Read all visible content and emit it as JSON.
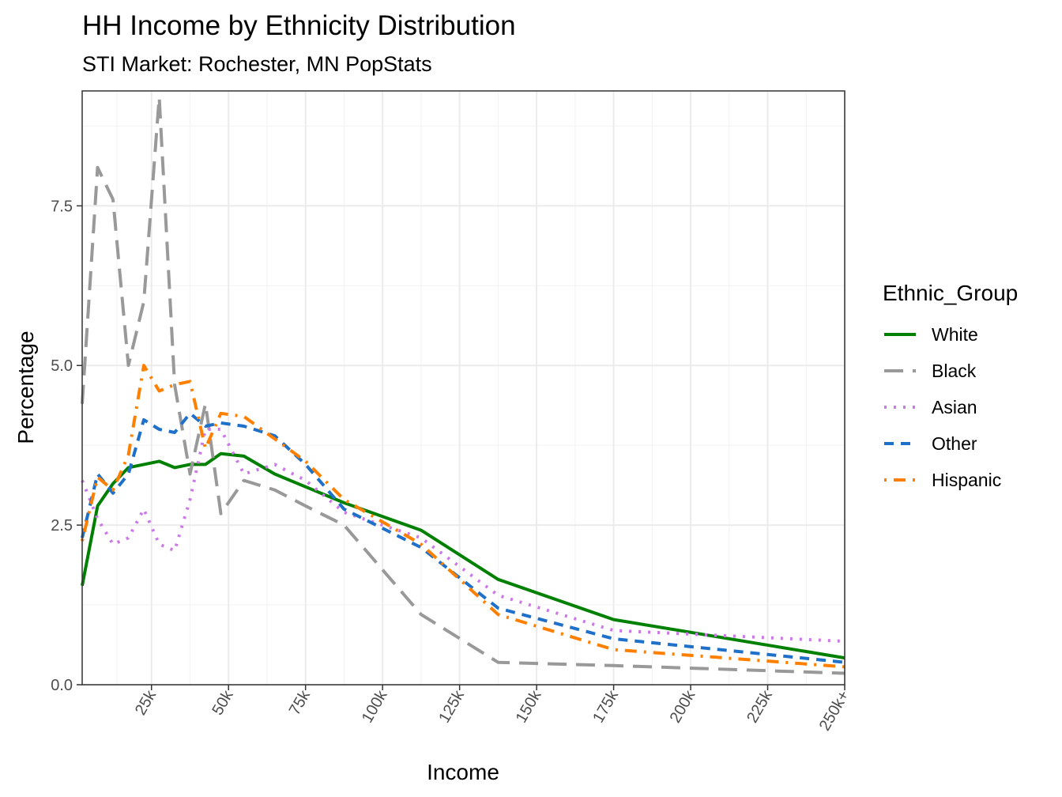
{
  "chart_data": {
    "type": "line",
    "title": "HH Income by Ethnicity Distribution",
    "subtitle": "STI Market: Rochester, MN PopStats",
    "xlabel": "Income",
    "ylabel": "Percentage",
    "xlim": [
      2.5,
      250
    ],
    "ylim": [
      0,
      9.3
    ],
    "x_ticks": [
      {
        "value": 25,
        "label": "25k"
      },
      {
        "value": 50,
        "label": "50k"
      },
      {
        "value": 75,
        "label": "75k"
      },
      {
        "value": 100,
        "label": "100k"
      },
      {
        "value": 125,
        "label": "125k"
      },
      {
        "value": 150,
        "label": "150k"
      },
      {
        "value": 175,
        "label": "175k"
      },
      {
        "value": 200,
        "label": "200k"
      },
      {
        "value": 225,
        "label": "225k"
      },
      {
        "value": 250,
        "label": "250k+"
      }
    ],
    "y_ticks": [
      {
        "value": 0,
        "label": "0.0"
      },
      {
        "value": 2.5,
        "label": "2.5"
      },
      {
        "value": 5,
        "label": "5.0"
      },
      {
        "value": 7.5,
        "label": "7.5"
      }
    ],
    "grid": true,
    "legend_title": "Ethnic_Group",
    "legend_position": "right",
    "x": [
      2.5,
      7.5,
      12.5,
      17.5,
      22.5,
      27.5,
      32.5,
      37.5,
      42.5,
      47.5,
      55,
      65,
      75,
      87.5,
      112.5,
      137.5,
      175,
      250
    ],
    "series": [
      {
        "name": "White",
        "color": "#008000",
        "dash": "solid",
        "values": [
          1.55,
          2.8,
          3.15,
          3.4,
          3.45,
          3.5,
          3.4,
          3.45,
          3.45,
          3.62,
          3.58,
          3.3,
          3.1,
          2.85,
          2.42,
          1.65,
          1.02,
          0.42
        ]
      },
      {
        "name": "Black",
        "color": "#999999",
        "dash": "longdash",
        "values": [
          4.4,
          8.1,
          7.6,
          5.0,
          6.0,
          9.2,
          4.7,
          3.3,
          4.4,
          2.68,
          3.2,
          3.05,
          2.8,
          2.5,
          1.1,
          0.35,
          0.3,
          0.18
        ]
      },
      {
        "name": "Asian",
        "color": "#CC79E8",
        "dash": "dotted",
        "values": [
          3.2,
          2.6,
          2.2,
          2.3,
          2.75,
          2.2,
          2.1,
          2.9,
          4.0,
          4.0,
          3.3,
          3.45,
          3.2,
          2.7,
          2.3,
          1.4,
          0.85,
          0.68
        ]
      },
      {
        "name": "Other",
        "color": "#1F70C9",
        "dash": "dashed",
        "values": [
          2.3,
          3.3,
          3.0,
          3.3,
          4.15,
          4.0,
          3.95,
          4.25,
          4.05,
          4.1,
          4.05,
          3.9,
          3.45,
          2.75,
          2.15,
          1.2,
          0.72,
          0.35
        ]
      },
      {
        "name": "Hispanic",
        "color": "#FF8000",
        "dash": "dotdash",
        "values": [
          2.25,
          3.25,
          3.05,
          3.6,
          5.0,
          4.6,
          4.7,
          4.75,
          3.7,
          4.25,
          4.2,
          3.85,
          3.5,
          2.9,
          2.2,
          1.1,
          0.55,
          0.28
        ]
      }
    ]
  }
}
